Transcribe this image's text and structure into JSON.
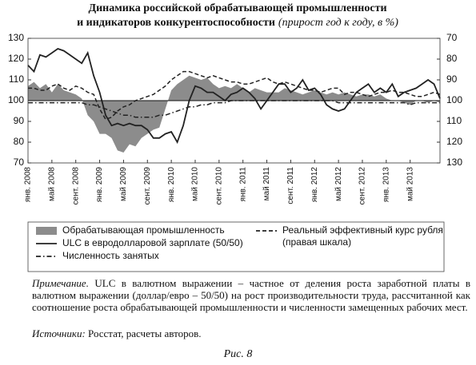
{
  "chart_data": {
    "type": "line",
    "title": "Динамика российской обрабатывающей промышленности",
    "title_line2": "и индикаторов конкурентоспособности",
    "subtitle": "(прирост год к году, в %)",
    "categories": [
      "янв. 2008",
      null,
      null,
      null,
      "май 2008",
      null,
      null,
      null,
      "сент. 2008",
      null,
      null,
      null,
      "янв. 2009",
      null,
      null,
      null,
      "май 2009",
      null,
      null,
      null,
      "сент. 2009",
      null,
      null,
      null,
      "янв. 2010",
      null,
      null,
      null,
      "май 2010",
      null,
      null,
      null,
      "сент. 2010",
      null,
      null,
      null,
      "янв. 2011",
      null,
      null,
      null,
      "май 2011",
      null,
      null,
      null,
      "сент. 2011",
      null,
      null,
      null,
      "янв. 2012",
      null,
      null,
      null,
      "май 2012",
      null,
      null,
      null,
      "сент. 2012",
      null,
      null,
      null,
      "янв. 2013",
      null,
      null,
      null,
      "май 2013",
      null,
      null,
      null,
      null,
      null
    ],
    "ylim": [
      70,
      130
    ],
    "yticks": [
      70,
      80,
      90,
      100,
      110,
      120,
      130
    ],
    "y2lim": [
      130,
      70
    ],
    "y2ticks": [
      130,
      120,
      110,
      100,
      90,
      80,
      70
    ],
    "baseline": 100,
    "series": [
      {
        "name": "Обрабатывающая промышленность",
        "style": "area",
        "color": "#8c8c8c",
        "values": [
          107,
          109,
          106,
          108,
          104,
          108,
          105,
          104,
          103,
          101,
          93,
          90,
          84,
          84,
          82,
          76,
          75,
          79,
          78,
          82,
          84,
          86,
          87,
          96,
          105,
          108,
          110,
          112,
          111,
          110,
          111,
          108,
          106,
          107,
          106,
          108,
          106,
          104,
          106,
          105,
          104,
          104,
          104,
          106,
          105,
          104,
          103,
          104,
          105,
          104,
          103,
          104,
          103,
          104,
          103,
          102,
          103,
          103,
          102,
          103,
          101,
          100,
          100,
          99,
          98,
          100,
          100,
          99,
          100,
          99
        ]
      },
      {
        "name": "ULC в евродолларовой зарплате (50/50)",
        "style": "solid",
        "color": "#222222",
        "values": [
          117,
          114,
          122,
          121,
          123,
          125,
          124,
          122,
          120,
          118,
          123,
          112,
          104,
          93,
          88,
          89,
          88,
          89,
          88,
          88,
          86,
          82,
          82,
          84,
          85,
          80,
          88,
          100,
          107,
          106,
          104,
          104,
          102,
          100,
          103,
          104,
          106,
          104,
          101,
          96,
          100,
          104,
          108,
          108,
          104,
          106,
          110,
          105,
          106,
          103,
          98,
          96,
          95,
          96,
          100,
          104,
          106,
          108,
          104,
          106,
          104,
          108,
          102,
          104,
          105,
          106,
          108,
          110,
          108,
          101
        ]
      },
      {
        "name": "Численность занятых",
        "style": "dashdot",
        "color": "#222222",
        "values": [
          99,
          99,
          99,
          99,
          99,
          99,
          99,
          99,
          99,
          99,
          98,
          98,
          97,
          96,
          95,
          94,
          93,
          93,
          92,
          92,
          92,
          92,
          93,
          93,
          94,
          95,
          96,
          97,
          97,
          98,
          98,
          99,
          99,
          99,
          100,
          100,
          100,
          100,
          100,
          100,
          100,
          100,
          100,
          100,
          100,
          100,
          100,
          100,
          100,
          100,
          100,
          100,
          99,
          99,
          99,
          99,
          99,
          99,
          99,
          99,
          99,
          99,
          99,
          99,
          98,
          99,
          99,
          99,
          99,
          99
        ]
      },
      {
        "name": "Реальный эффективный курс рубля",
        "axis_note": "(правая шкала)",
        "style": "dashed",
        "axis": "y2",
        "color": "#222222",
        "values": [
          94,
          94,
          95,
          95,
          93,
          92,
          94,
          95,
          93,
          94,
          96,
          97,
          104,
          109,
          108,
          105,
          103,
          102,
          100,
          99,
          98,
          97,
          95,
          93,
          90,
          88,
          86,
          86,
          87,
          88,
          89,
          88,
          89,
          90,
          91,
          91,
          92,
          92,
          91,
          90,
          89,
          91,
          92,
          91,
          92,
          93,
          94,
          95,
          95,
          96,
          95,
          94,
          94,
          97,
          96,
          96,
          97,
          98,
          97,
          96,
          96,
          95,
          96,
          96,
          97,
          98,
          98,
          97,
          96,
          97
        ]
      }
    ]
  },
  "note": {
    "label": "Примечание.",
    "text": "ULC в валютном выражении – частное от деления роста заработной платы в валютном выражении (доллар/евро – 50/50) на рост производительности труда, рассчитанной как соотношение роста обрабатывающей промышленности и численности замещенных рабочих мест."
  },
  "sources": {
    "label": "Источники:",
    "text": "Росстат, расчеты авторов."
  },
  "caption": "Рис. 8"
}
